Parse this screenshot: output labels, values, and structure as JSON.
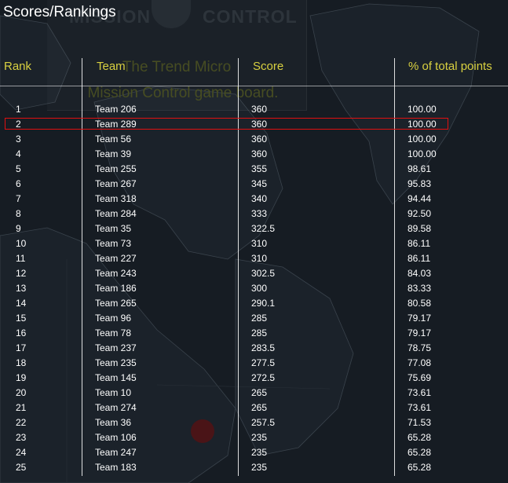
{
  "page_title": "Scores/Rankings",
  "background": {
    "brand_left": "MISSION",
    "brand_right": "CONTROL",
    "tagline_line1": "The Trend Micro",
    "tagline_line2": "Mission Control game board."
  },
  "colors": {
    "header_text": "#d8d040",
    "highlight_border": "#e01010",
    "background": "#161c23"
  },
  "table": {
    "headers": {
      "rank": "Rank",
      "team": "Team",
      "score": "Score",
      "pct": "% of total points"
    },
    "highlighted_rank": "2",
    "rows": [
      {
        "rank": "1",
        "team": "Team 206",
        "score": "360",
        "pct": "100.00"
      },
      {
        "rank": "2",
        "team": "Team 289",
        "score": "360",
        "pct": "100.00"
      },
      {
        "rank": "3",
        "team": "Team 56",
        "score": "360",
        "pct": "100.00"
      },
      {
        "rank": "4",
        "team": "Team 39",
        "score": "360",
        "pct": "100.00"
      },
      {
        "rank": "5",
        "team": "Team 255",
        "score": "355",
        "pct": "98.61"
      },
      {
        "rank": "6",
        "team": "Team 267",
        "score": "345",
        "pct": "95.83"
      },
      {
        "rank": "7",
        "team": "Team 318",
        "score": "340",
        "pct": "94.44"
      },
      {
        "rank": "8",
        "team": "Team 284",
        "score": "333",
        "pct": "92.50"
      },
      {
        "rank": "9",
        "team": "Team 35",
        "score": "322.5",
        "pct": "89.58"
      },
      {
        "rank": "10",
        "team": "Team 73",
        "score": "310",
        "pct": "86.11"
      },
      {
        "rank": "11",
        "team": "Team 227",
        "score": "310",
        "pct": "86.11"
      },
      {
        "rank": "12",
        "team": "Team 243",
        "score": "302.5",
        "pct": "84.03"
      },
      {
        "rank": "13",
        "team": "Team 186",
        "score": "300",
        "pct": "83.33"
      },
      {
        "rank": "14",
        "team": "Team 265",
        "score": "290.1",
        "pct": "80.58"
      },
      {
        "rank": "15",
        "team": "Team 96",
        "score": "285",
        "pct": "79.17"
      },
      {
        "rank": "16",
        "team": "Team 78",
        "score": "285",
        "pct": "79.17"
      },
      {
        "rank": "17",
        "team": "Team 237",
        "score": "283.5",
        "pct": "78.75"
      },
      {
        "rank": "18",
        "team": "Team 235",
        "score": "277.5",
        "pct": "77.08"
      },
      {
        "rank": "19",
        "team": "Team 145",
        "score": "272.5",
        "pct": "75.69"
      },
      {
        "rank": "20",
        "team": "Team 10",
        "score": "265",
        "pct": "73.61"
      },
      {
        "rank": "21",
        "team": "Team 274",
        "score": "265",
        "pct": "73.61"
      },
      {
        "rank": "22",
        "team": "Team 36",
        "score": "257.5",
        "pct": "71.53"
      },
      {
        "rank": "23",
        "team": "Team 106",
        "score": "235",
        "pct": "65.28"
      },
      {
        "rank": "24",
        "team": "Team 247",
        "score": "235",
        "pct": "65.28"
      },
      {
        "rank": "25",
        "team": "Team 183",
        "score": "235",
        "pct": "65.28"
      }
    ]
  }
}
